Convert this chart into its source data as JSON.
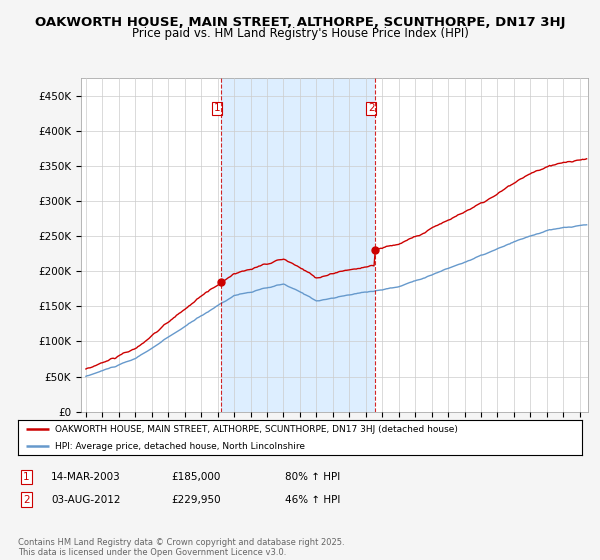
{
  "title": "OAKWORTH HOUSE, MAIN STREET, ALTHORPE, SCUNTHORPE, DN17 3HJ",
  "subtitle": "Price paid vs. HM Land Registry's House Price Index (HPI)",
  "title_fontsize": 9.5,
  "subtitle_fontsize": 8.5,
  "background_color": "#f5f5f5",
  "plot_bg_color": "#ffffff",
  "highlight_color": "#ddeeff",
  "legend_line1": "OAKWORTH HOUSE, MAIN STREET, ALTHORPE, SCUNTHORPE, DN17 3HJ (detached house)",
  "legend_line2": "HPI: Average price, detached house, North Lincolnshire",
  "sale1_date": "14-MAR-2003",
  "sale1_price": "£185,000",
  "sale1_hpi": "80% ↑ HPI",
  "sale1_year": 2003.2,
  "sale1_value": 185000,
  "sale2_date": "03-AUG-2012",
  "sale2_price": "£229,950",
  "sale2_hpi": "46% ↑ HPI",
  "sale2_year": 2012.58,
  "sale2_value": 229950,
  "footer": "Contains HM Land Registry data © Crown copyright and database right 2025.\nThis data is licensed under the Open Government Licence v3.0.",
  "hpi_color": "#6699cc",
  "price_color": "#cc0000",
  "dashed_color": "#cc0000",
  "ylim": [
    0,
    475000
  ],
  "yticks": [
    0,
    50000,
    100000,
    150000,
    200000,
    250000,
    300000,
    350000,
    400000,
    450000
  ],
  "ytick_labels": [
    "£0",
    "£50K",
    "£100K",
    "£150K",
    "£200K",
    "£250K",
    "£300K",
    "£350K",
    "£400K",
    "£450K"
  ]
}
